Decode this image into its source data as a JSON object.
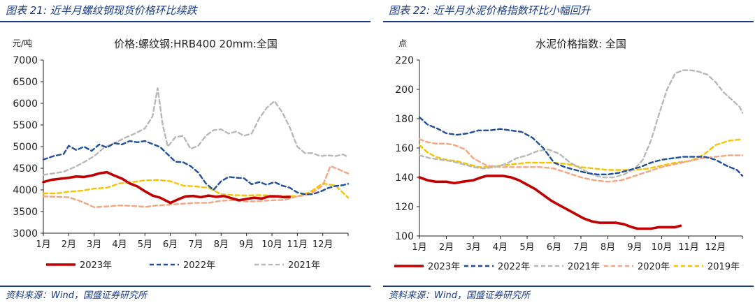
{
  "left": {
    "title": "图表 21:  近半月螺纹钢现货价格环比续跌",
    "source": "资料来源：Wind，国盛证券研究所"
  },
  "right": {
    "title": "图表 22:  近半月水泥价格指数环比小幅回升",
    "source": "资料来源：Wind，国盛证券研究所"
  },
  "chart_data": [
    {
      "type": "line",
      "title": "价格:螺纹钢:HRB400 20mm:全国",
      "ylabel": "元/吨",
      "ylim": [
        3000,
        7000
      ],
      "yticks": [
        3000,
        3500,
        4000,
        4500,
        5000,
        5500,
        6000,
        6500,
        7000
      ],
      "xlim": [
        1,
        13
      ],
      "categories": [
        "1月",
        "2月",
        "3月",
        "4月",
        "5月",
        "6月",
        "7月",
        "8月",
        "9月",
        "10月",
        "11月",
        "12月"
      ],
      "legend_position": "bottom",
      "series": [
        {
          "name": "2023年",
          "color": "#c00000",
          "style": "solid",
          "x": [
            1,
            1.3,
            1.7,
            2,
            2.3,
            2.6,
            2.9,
            3.2,
            3.5,
            3.8,
            4.1,
            4.4,
            4.7,
            5,
            5.3,
            5.6,
            5.8,
            6,
            6.3,
            6.6,
            6.9,
            7.2,
            7.5,
            7.8,
            8.1,
            8.4,
            8.7,
            9,
            9.3,
            9.6,
            9.9,
            10.2,
            10.5,
            10.7
          ],
          "values": [
            4180,
            4230,
            4260,
            4280,
            4310,
            4300,
            4330,
            4380,
            4410,
            4330,
            4260,
            4150,
            4080,
            3970,
            3870,
            3820,
            3760,
            3700,
            3780,
            3850,
            3860,
            3830,
            3870,
            3840,
            3860,
            3810,
            3760,
            3790,
            3820,
            3800,
            3850,
            3850,
            3830,
            3840
          ]
        },
        {
          "name": "2022年",
          "color": "#1f4e9c",
          "style": "dash",
          "x": [
            1,
            1.4,
            1.8,
            2,
            2.3,
            2.6,
            2.9,
            3.2,
            3.5,
            3.8,
            4.1,
            4.4,
            4.7,
            5,
            5.3,
            5.6,
            5.9,
            6.2,
            6.5,
            6.8,
            7.1,
            7.4,
            7.7,
            8,
            8.3,
            8.6,
            8.9,
            9.2,
            9.5,
            9.8,
            10.1,
            10.4,
            10.7,
            11,
            11.3,
            11.6,
            11.9,
            12.2,
            12.5,
            12.8,
            13
          ],
          "values": [
            4700,
            4780,
            4830,
            5020,
            4920,
            5000,
            4900,
            5050,
            4980,
            5080,
            5050,
            5130,
            5100,
            5130,
            5060,
            4990,
            4820,
            4650,
            4640,
            4550,
            4400,
            4150,
            4000,
            4200,
            4300,
            4280,
            4270,
            4130,
            4180,
            4120,
            4180,
            4100,
            4050,
            3940,
            3900,
            3900,
            3960,
            4040,
            4090,
            4110,
            4140
          ]
        },
        {
          "name": "2021年",
          "color": "#b8b8b8",
          "style": "dash",
          "x": [
            1,
            1.4,
            1.8,
            2.2,
            2.6,
            3,
            3.4,
            3.8,
            4.2,
            4.6,
            5,
            5.3,
            5.5,
            5.7,
            5.9,
            6.2,
            6.5,
            6.8,
            7.1,
            7.4,
            7.7,
            8,
            8.3,
            8.6,
            8.9,
            9.2,
            9.5,
            9.8,
            10.1,
            10.4,
            10.7,
            11,
            11.3,
            11.6,
            11.9,
            12.2,
            12.5,
            12.8,
            13
          ],
          "values": [
            4350,
            4380,
            4420,
            4520,
            4640,
            4780,
            4980,
            5080,
            5200,
            5300,
            5420,
            5700,
            6350,
            5500,
            5000,
            5220,
            5250,
            4950,
            5020,
            5250,
            5380,
            5400,
            5300,
            5350,
            5250,
            5300,
            5650,
            5900,
            6050,
            5800,
            5450,
            5000,
            4850,
            4850,
            4780,
            4800,
            4780,
            4820,
            4760
          ]
        },
        {
          "name": "",
          "color": "#f4a582",
          "style": "dash",
          "x": [
            1,
            1.5,
            2,
            2.5,
            3,
            3.5,
            4,
            4.5,
            5,
            5.5,
            6,
            6.5,
            7,
            7.5,
            8,
            8.5,
            9,
            9.5,
            10,
            10.5,
            11,
            11.5,
            12,
            12.3,
            12.6,
            12.9,
            13
          ],
          "values": [
            3850,
            3840,
            3830,
            3730,
            3600,
            3620,
            3640,
            3630,
            3610,
            3640,
            3660,
            3680,
            3700,
            3700,
            3750,
            3760,
            3730,
            3740,
            3760,
            3770,
            3850,
            3900,
            4100,
            4550,
            4480,
            4400,
            4380
          ]
        },
        {
          "name": "",
          "color": "#f5c400",
          "style": "dash",
          "x": [
            1,
            1.5,
            2,
            2.5,
            3,
            3.5,
            4,
            4.5,
            5,
            5.5,
            6,
            6.5,
            7,
            7.5,
            8,
            8.5,
            9,
            9.5,
            10,
            10.5,
            11,
            11.5,
            12,
            12.5,
            13
          ],
          "values": [
            3920,
            3920,
            3960,
            3980,
            4030,
            4050,
            4150,
            4180,
            4220,
            4230,
            4200,
            4100,
            4080,
            4050,
            3900,
            3880,
            3870,
            3880,
            3870,
            3860,
            3850,
            3950,
            4150,
            4100,
            3820
          ]
        }
      ]
    },
    {
      "type": "line",
      "title": "水泥价格指数:  全国",
      "ylabel": "点",
      "ylim": [
        100,
        220
      ],
      "yticks": [
        100,
        120,
        140,
        160,
        180,
        200,
        220
      ],
      "xlim": [
        1,
        13
      ],
      "categories": [
        "1月",
        "2月",
        "3月",
        "4月",
        "5月",
        "6月",
        "7月",
        "8月",
        "9月",
        "10月",
        "11月",
        "12月"
      ],
      "legend_position": "bottom",
      "series": [
        {
          "name": "2023年",
          "color": "#c00000",
          "style": "solid",
          "x": [
            1,
            1.3,
            1.6,
            2,
            2.3,
            2.6,
            3,
            3.3,
            3.5,
            3.8,
            4.1,
            4.4,
            4.7,
            5,
            5.3,
            5.6,
            5.9,
            6.2,
            6.5,
            6.8,
            7.1,
            7.4,
            7.7,
            8,
            8.3,
            8.6,
            8.9,
            9.1,
            9.3,
            9.6,
            9.9,
            10.2,
            10.5,
            10.7
          ],
          "values": [
            140,
            138,
            137,
            137,
            136,
            137,
            138,
            140,
            141,
            141,
            141,
            140,
            138,
            135,
            132,
            128,
            124,
            121,
            118,
            115,
            112,
            110,
            109,
            109,
            109,
            108,
            106,
            105,
            105,
            105,
            106,
            106,
            106,
            107
          ]
        },
        {
          "name": "2022年",
          "color": "#1f4e9c",
          "style": "dash",
          "x": [
            1,
            1.3,
            1.7,
            2,
            2.4,
            2.8,
            3.2,
            3.6,
            4,
            4.4,
            4.8,
            5.2,
            5.6,
            6,
            6.4,
            6.8,
            7.2,
            7.6,
            8,
            8.4,
            8.8,
            9.2,
            9.6,
            10,
            10.4,
            10.8,
            11.2,
            11.6,
            12,
            12.4,
            12.8,
            13
          ],
          "values": [
            181,
            176,
            173,
            170,
            169,
            170,
            172,
            172,
            173,
            172,
            171,
            167,
            160,
            150,
            147,
            145,
            143,
            142,
            142,
            143,
            145,
            147,
            150,
            152,
            153,
            154,
            154,
            154,
            152,
            148,
            145,
            141
          ]
        },
        {
          "name": "2021年",
          "color": "#b8b8b8",
          "style": "dash",
          "x": [
            1,
            1.4,
            1.8,
            2.2,
            2.6,
            3,
            3.4,
            3.8,
            4.2,
            4.6,
            5,
            5.4,
            5.8,
            6.2,
            6.6,
            7,
            7.4,
            7.8,
            8.2,
            8.6,
            9,
            9.3,
            9.6,
            9.9,
            10.2,
            10.5,
            10.8,
            11.1,
            11.4,
            11.7,
            12,
            12.3,
            12.6,
            12.9,
            13
          ],
          "values": [
            155,
            153,
            152,
            151,
            149,
            147,
            146,
            147,
            149,
            153,
            155,
            158,
            159,
            156,
            150,
            146,
            142,
            140,
            140,
            142,
            146,
            152,
            165,
            183,
            200,
            211,
            213,
            213,
            212,
            210,
            205,
            198,
            193,
            188,
            184
          ]
        },
        {
          "name": "2020年",
          "color": "#f4a582",
          "style": "dash",
          "x": [
            1,
            1.3,
            1.6,
            2,
            2.3,
            2.7,
            3,
            3.5,
            4,
            4.5,
            5,
            5.5,
            6,
            6.5,
            7,
            7.5,
            8,
            8.5,
            9,
            9.5,
            10,
            10.5,
            11,
            11.5,
            12,
            12.5,
            13
          ],
          "values": [
            166,
            164,
            163,
            163,
            162,
            159,
            153,
            148,
            147,
            147,
            147,
            147,
            146,
            143,
            140,
            138,
            137,
            138,
            141,
            144,
            147,
            149,
            151,
            153,
            154,
            155,
            155
          ]
        },
        {
          "name": "2019年",
          "color": "#f5c400",
          "style": "dash",
          "x": [
            1,
            1.3,
            1.6,
            2,
            2.4,
            2.8,
            3.2,
            3.6,
            4,
            4.5,
            5,
            5.5,
            6,
            6.5,
            7,
            7.5,
            8,
            8.5,
            9,
            9.5,
            10,
            10.5,
            11,
            11.3,
            11.6,
            12,
            12.5,
            13
          ],
          "values": [
            162,
            157,
            154,
            152,
            151,
            149,
            147,
            147,
            148,
            149,
            150,
            150,
            150,
            149,
            147,
            146,
            145,
            145,
            145,
            146,
            148,
            150,
            151,
            153,
            156,
            162,
            165,
            166
          ]
        }
      ]
    }
  ]
}
